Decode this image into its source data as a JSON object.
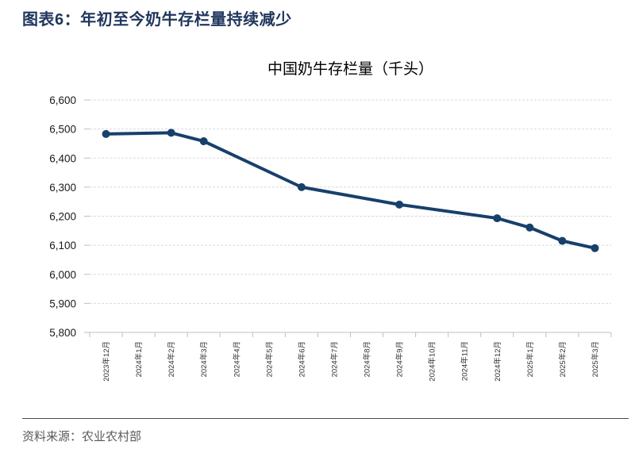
{
  "header": {
    "title": "图表6：年初至今奶牛存栏量持续减少"
  },
  "footer": {
    "source": "资料来源：农业农村部"
  },
  "chart_data": {
    "type": "line",
    "title": "中国奶牛存栏量（千头）",
    "categories": [
      "2023年12月",
      "2024年1月",
      "2024年2月",
      "2024年3月",
      "2024年4月",
      "2024年5月",
      "2024年6月",
      "2024年7月",
      "2024年8月",
      "2024年9月",
      "2024年10月",
      "2024年11月",
      "2024年12月",
      "2025年1月",
      "2025年2月",
      "2025年3月"
    ],
    "series": [
      {
        "name": "中国奶牛存栏量",
        "points": [
          {
            "label": "2023年12月",
            "value": 6483
          },
          {
            "label": "2024年2月",
            "value": 6487
          },
          {
            "label": "2024年3月",
            "value": 6458
          },
          {
            "label": "2024年6月",
            "value": 6300
          },
          {
            "label": "2024年9月",
            "value": 6240
          },
          {
            "label": "2024年12月",
            "value": 6193
          },
          {
            "label": "2025年1月",
            "value": 6161
          },
          {
            "label": "2025年2月",
            "value": 6115
          },
          {
            "label": "2025年3月",
            "value": 6090
          }
        ]
      }
    ],
    "ylim": [
      5800,
      6600
    ],
    "ytick_step": 100,
    "grid": "horizontal-dashed",
    "legend": "none",
    "colors": {
      "line": "#17406B",
      "grid": "#D9D9D9",
      "axis": "#BFBFBF",
      "y_tick_label": "#1a1a1a",
      "x_tick_label": "#333333",
      "chart_title_text": "#000000",
      "header_text": "#20365C",
      "source_text": "#595959"
    }
  }
}
